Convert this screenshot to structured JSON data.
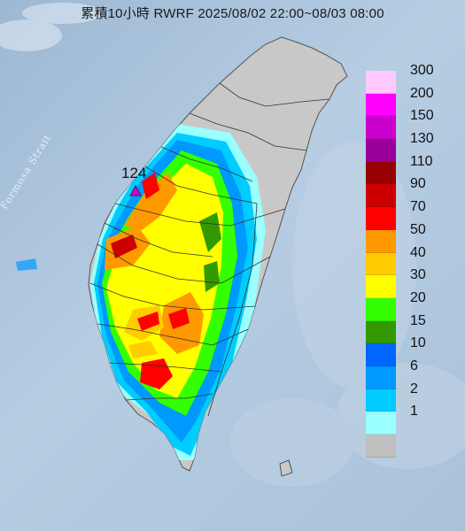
{
  "title": "累積10小時 RWRF 2025/08/02 22:00~08/03 08:00",
  "strait_label": "Formosa Strait",
  "max_station": {
    "value": "124"
  },
  "legend": {
    "items": [
      {
        "label": "300",
        "color": "#ffc8ff"
      },
      {
        "label": "200",
        "color": "#ff00ff"
      },
      {
        "label": "150",
        "color": "#cc00cc"
      },
      {
        "label": "130",
        "color": "#990099"
      },
      {
        "label": "110",
        "color": "#990000"
      },
      {
        "label": "90",
        "color": "#cc0000"
      },
      {
        "label": "70",
        "color": "#ff0000"
      },
      {
        "label": "50",
        "color": "#ff9900"
      },
      {
        "label": "40",
        "color": "#ffcc00"
      },
      {
        "label": "30",
        "color": "#ffff00"
      },
      {
        "label": "20",
        "color": "#33ff00"
      },
      {
        "label": "15",
        "color": "#339900"
      },
      {
        "label": "10",
        "color": "#0066ff"
      },
      {
        "label": "6",
        "color": "#0099ff"
      },
      {
        "label": "2",
        "color": "#00ccff"
      },
      {
        "label": "1",
        "color": "#99ffff"
      },
      {
        "label": "",
        "color": "#c0c0c0"
      }
    ]
  }
}
